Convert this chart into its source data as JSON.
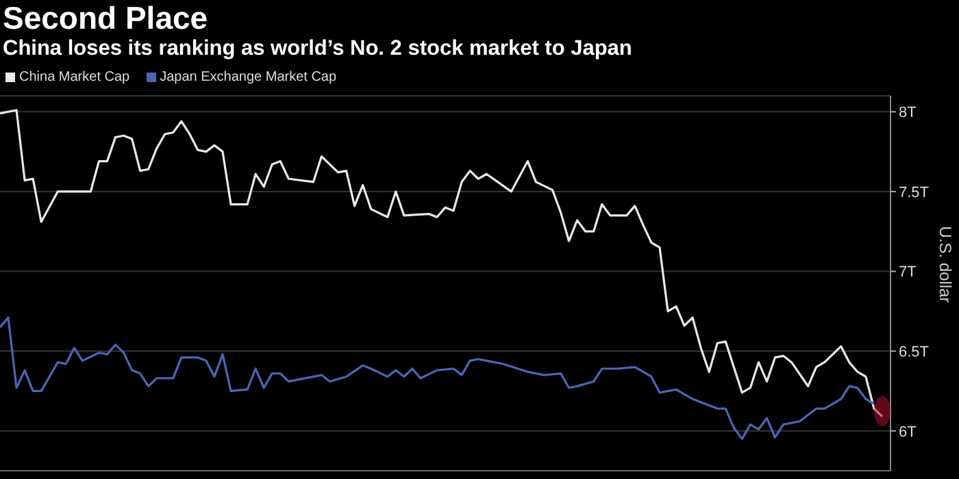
{
  "chart_data": {
    "type": "line",
    "title": "Second Place",
    "subtitle": "China loses its ranking as world’s No. 2 stock market to Japan",
    "ylabel": "U.S. dollar",
    "categories": [
      null,
      null,
      null,
      null,
      null,
      null,
      null,
      null,
      null,
      null,
      null,
      null,
      null,
      null,
      null,
      null,
      null,
      null,
      null,
      null,
      null,
      null,
      null,
      null,
      null,
      null,
      null,
      null,
      null,
      null,
      null,
      null,
      null,
      null,
      null,
      null,
      null,
      null,
      null,
      null,
      null,
      null,
      null,
      null,
      null,
      null,
      null,
      null,
      null,
      null,
      null,
      null,
      null,
      null,
      null,
      null,
      null,
      null,
      null,
      null,
      null,
      null,
      null,
      null,
      null,
      null,
      null,
      null,
      null,
      null,
      null,
      null,
      null,
      null,
      null,
      null,
      null,
      null,
      null,
      null,
      null,
      null,
      null,
      null,
      null,
      null,
      null,
      null,
      null,
      null,
      null,
      null,
      null,
      null,
      null,
      null,
      null,
      null,
      null,
      null,
      null,
      null,
      null,
      null,
      null,
      null,
      null,
      null,
      null
    ],
    "series": [
      {
        "name": "China Market Cap",
        "color": "#e8e8e8",
        "values": [
          7.99,
          null,
          8.01,
          7.57,
          7.58,
          7.31,
          null,
          7.5,
          null,
          null,
          null,
          7.5,
          7.69,
          7.69,
          7.84,
          7.85,
          7.83,
          7.63,
          7.64,
          7.77,
          7.86,
          7.87,
          7.94,
          7.86,
          7.76,
          7.75,
          7.79,
          7.75,
          7.42,
          7.42,
          7.42,
          7.61,
          7.53,
          7.67,
          7.69,
          7.58,
          null,
          null,
          7.56,
          7.72,
          null,
          7.62,
          7.63,
          7.41,
          7.54,
          7.39,
          null,
          7.34,
          7.5,
          7.35,
          null,
          null,
          7.36,
          7.34,
          7.4,
          7.38,
          7.56,
          7.63,
          7.58,
          7.61,
          null,
          null,
          7.5,
          null,
          7.69,
          7.56,
          null,
          7.51,
          7.37,
          7.19,
          7.32,
          7.25,
          7.25,
          7.42,
          7.35,
          null,
          7.35,
          7.41,
          7.29,
          7.18,
          7.15,
          6.75,
          6.78,
          6.66,
          6.71,
          6.52,
          6.37,
          6.55,
          6.56,
          6.4,
          6.24,
          6.27,
          6.43,
          6.31,
          6.46,
          6.47,
          6.43,
          null,
          6.28,
          6.4,
          6.43,
          null,
          6.53,
          6.43,
          6.37,
          6.34,
          6.14,
          6.09,
          null
        ]
      },
      {
        "name": "Japan Exchange Market Cap",
        "color": "#4a67b5",
        "values": [
          6.65,
          6.71,
          6.27,
          6.38,
          6.25,
          6.25,
          null,
          6.43,
          6.42,
          6.52,
          6.44,
          null,
          6.49,
          6.48,
          6.54,
          6.49,
          6.38,
          6.36,
          6.28,
          6.33,
          null,
          6.33,
          6.46,
          null,
          6.46,
          6.44,
          6.34,
          6.48,
          6.25,
          null,
          6.26,
          6.39,
          6.27,
          6.36,
          6.36,
          6.31,
          null,
          null,
          null,
          6.35,
          6.31,
          null,
          6.34,
          null,
          6.41,
          6.39,
          null,
          6.34,
          6.38,
          6.34,
          6.39,
          6.33,
          null,
          6.38,
          null,
          6.39,
          6.35,
          6.44,
          6.45,
          6.44,
          null,
          6.42,
          null,
          null,
          6.37,
          null,
          6.35,
          null,
          6.36,
          6.27,
          6.28,
          null,
          6.31,
          6.39,
          null,
          6.39,
          null,
          6.4,
          null,
          6.34,
          6.24,
          null,
          6.26,
          null,
          6.2,
          null,
          null,
          6.14,
          6.14,
          6.02,
          5.95,
          6.04,
          6.01,
          6.08,
          5.96,
          6.04,
          null,
          6.06,
          null,
          6.14,
          6.14,
          null,
          6.2,
          6.28,
          6.27,
          6.2,
          6.17,
          null,
          null
        ]
      }
    ],
    "ylim": [
      5.75,
      8.1
    ],
    "yticks": [
      {
        "value": 6,
        "label": "6T"
      },
      {
        "value": 6.5,
        "label": "6.5T"
      },
      {
        "value": 7,
        "label": "7T"
      },
      {
        "value": 7.5,
        "label": "7.5T"
      },
      {
        "value": 8,
        "label": "8T"
      }
    ],
    "tick_labels": "y",
    "grid": "y",
    "legend": "top left",
    "marker": "none",
    "line_style": "solid"
  }
}
